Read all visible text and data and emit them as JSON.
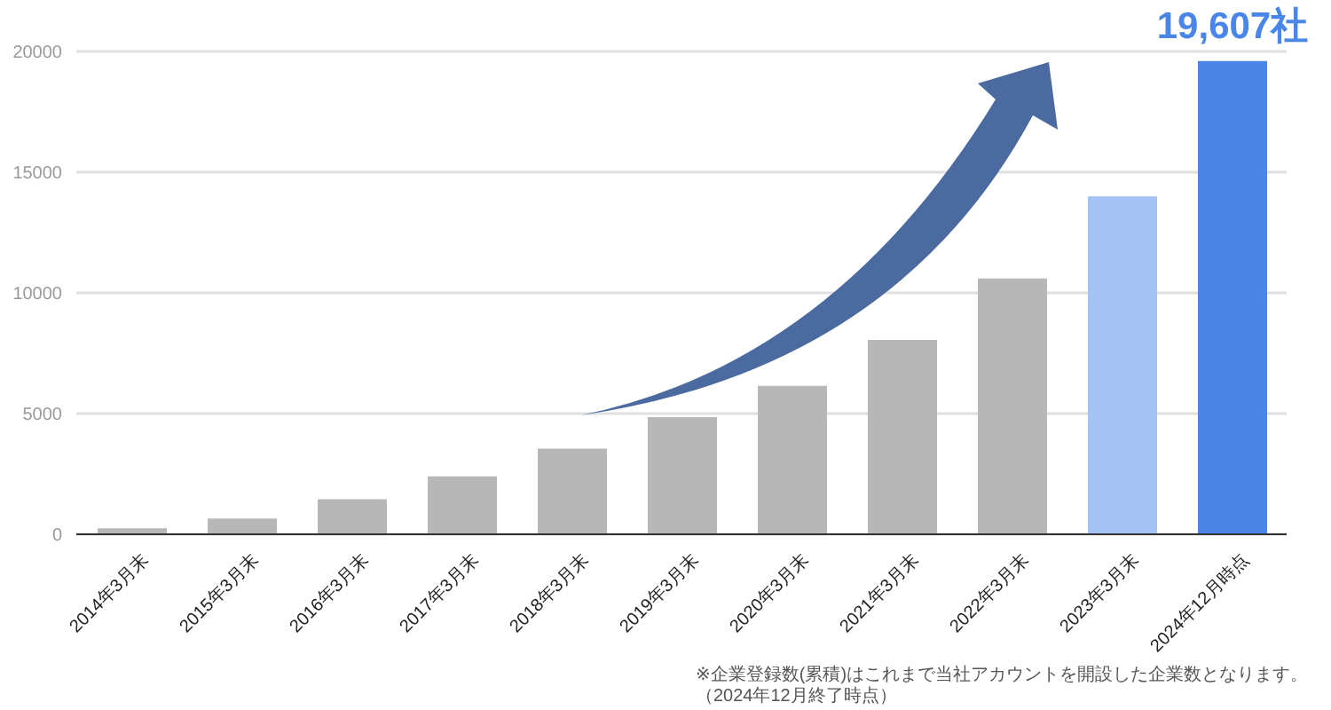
{
  "chart_data": {
    "type": "bar",
    "categories": [
      "2014年3月末",
      "2015年3月末",
      "2016年3月末",
      "2017年3月末",
      "2018年3月末",
      "2019年3月末",
      "2020年3月末",
      "2021年3月末",
      "2022年3月末",
      "2023年3月末",
      "2024年12月時点"
    ],
    "values": [
      250,
      650,
      1450,
      2400,
      3550,
      4850,
      6150,
      8050,
      10600,
      14000,
      19607
    ],
    "colors": [
      "#b7b7b7",
      "#b7b7b7",
      "#b7b7b7",
      "#b7b7b7",
      "#b7b7b7",
      "#b7b7b7",
      "#b7b7b7",
      "#b7b7b7",
      "#b7b7b7",
      "#a4c2f4",
      "#4a86e8"
    ],
    "value_labels": [
      null,
      null,
      null,
      null,
      null,
      null,
      null,
      null,
      null,
      null,
      "19,607社"
    ],
    "ylim": [
      0,
      20000
    ],
    "yticks": [
      0,
      5000,
      10000,
      15000,
      20000
    ],
    "grid": "y",
    "annotations": [
      "※企業登録数(累積)はこれまで当社アカウントを開設した企業数となります。",
      "（2024年12月終了時点）"
    ]
  }
}
